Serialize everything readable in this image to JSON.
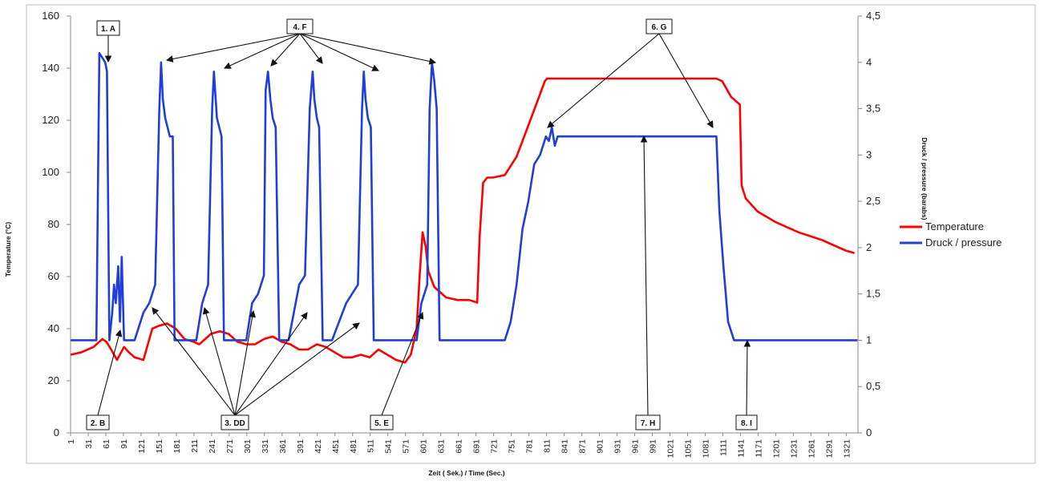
{
  "chart_data": {
    "type": "line",
    "title": "",
    "xlabel": "Zeit ( Sek.) / Time (Sec.)",
    "ylabel_left": "Temperature (°C)",
    "ylabel_right": "Druck / pressure (barabs)",
    "xlim": [
      1,
      1341
    ],
    "ylim_left": [
      0,
      160
    ],
    "ylim_right": [
      0,
      4.5
    ],
    "x_ticks": [
      1,
      31,
      61,
      91,
      121,
      151,
      181,
      211,
      241,
      271,
      301,
      331,
      361,
      391,
      421,
      451,
      481,
      511,
      541,
      571,
      601,
      631,
      661,
      691,
      721,
      751,
      781,
      811,
      841,
      871,
      901,
      931,
      961,
      991,
      1021,
      1051,
      1081,
      1111,
      1141,
      1171,
      1201,
      1231,
      1261,
      1291,
      1321
    ],
    "y_ticks_left": [
      "0",
      "20",
      "40",
      "60",
      "80",
      "100",
      "120",
      "140",
      "160"
    ],
    "y_ticks_right": [
      "0",
      "0,5",
      "1",
      "1,5",
      "2",
      "2,5",
      "3",
      "3,5",
      "4",
      "4,5"
    ],
    "grid": false,
    "legend_position": "right",
    "series": [
      {
        "name": "Temperature",
        "axis": "left",
        "color": "#ff0000",
        "x": [
          1,
          20,
          40,
          55,
          62,
          70,
          80,
          92,
          100,
          110,
          125,
          140,
          150,
          165,
          180,
          195,
          210,
          220,
          240,
          255,
          270,
          285,
          300,
          315,
          330,
          345,
          360,
          375,
          390,
          405,
          420,
          435,
          450,
          465,
          480,
          495,
          510,
          525,
          540,
          555,
          570,
          580,
          590,
          595,
          600,
          605,
          610,
          620,
          630,
          640,
          660,
          680,
          693,
          697,
          703,
          710,
          720,
          740,
          760,
          780,
          800,
          808,
          812,
          830,
          900,
          1000,
          1080,
          1100,
          1110,
          1115,
          1125,
          1140,
          1143,
          1150,
          1170,
          1200,
          1240,
          1280,
          1320,
          1335
        ],
        "y": [
          30,
          31,
          33,
          36,
          35,
          32,
          28,
          33,
          31,
          29,
          28,
          40,
          41,
          42,
          40,
          36,
          35,
          34,
          38,
          39,
          38,
          35,
          34,
          34,
          36,
          37,
          35,
          34,
          32,
          32,
          34,
          33,
          31,
          29,
          29,
          30,
          29,
          32,
          30,
          28,
          27,
          30,
          40,
          60,
          77,
          72,
          62,
          56,
          54,
          52,
          51,
          51,
          50,
          75,
          96,
          98,
          98,
          99,
          106,
          118,
          130,
          135,
          136,
          136,
          136,
          136,
          136,
          136,
          135,
          133,
          129,
          126,
          95,
          90,
          85,
          81,
          77,
          74,
          70,
          69
        ]
      },
      {
        "name": "Druck / pressure",
        "axis": "right",
        "color": "#1f3fd8",
        "x": [
          1,
          30,
          45,
          50,
          55,
          60,
          63,
          67,
          72,
          75,
          78,
          82,
          85,
          88,
          92,
          95,
          110,
          125,
          135,
          145,
          152,
          155,
          158,
          162,
          166,
          170,
          175,
          178,
          182,
          186,
          190,
          215,
          225,
          235,
          242,
          245,
          248,
          250,
          254,
          258,
          262,
          268,
          272,
          276,
          280,
          300,
          310,
          320,
          330,
          333,
          337,
          341,
          345,
          350,
          356,
          360,
          364,
          368,
          372,
          390,
          400,
          408,
          413,
          416,
          420,
          424,
          430,
          434,
          438,
          442,
          446,
          470,
          480,
          490,
          497,
          500,
          503,
          507,
          512,
          517,
          522,
          527,
          531,
          535,
          540,
          570,
          590,
          598,
          603,
          608,
          612,
          616,
          620,
          624,
          629,
          634,
          638,
          642,
          646,
          650,
          660,
          700,
          740,
          750,
          760,
          770,
          780,
          790,
          800,
          810,
          815,
          820,
          825,
          830,
          900,
          1000,
          1080,
          1100,
          1105,
          1112,
          1120,
          1130,
          1140,
          1143,
          1150,
          1160,
          1200,
          1250,
          1300,
          1340
        ],
        "y": [
          1,
          1,
          1,
          4.1,
          4.05,
          4.0,
          3.9,
          1.0,
          1.3,
          1.6,
          1.4,
          1.8,
          1.2,
          1.9,
          1.0,
          1.0,
          1.0,
          1.3,
          1.4,
          1.6,
          3.5,
          4.0,
          3.6,
          3.4,
          3.3,
          3.2,
          3.2,
          1.0,
          1.0,
          1.0,
          1.0,
          1.0,
          1.4,
          1.6,
          3.5,
          3.9,
          3.6,
          3.4,
          3.3,
          3.2,
          1.0,
          1.0,
          1.0,
          1.0,
          1.0,
          1.0,
          1.4,
          1.5,
          1.7,
          3.7,
          3.9,
          3.6,
          3.4,
          3.3,
          1.0,
          1.0,
          1.0,
          1.0,
          1.0,
          1.6,
          1.7,
          3.5,
          3.9,
          3.6,
          3.4,
          3.3,
          1.0,
          1.0,
          1.0,
          1.0,
          1.0,
          1.4,
          1.5,
          1.6,
          3.5,
          3.9,
          3.6,
          3.4,
          3.3,
          1.0,
          1.0,
          1.0,
          1.0,
          1.0,
          1.0,
          1.0,
          1.0,
          1.4,
          1.5,
          1.6,
          3.5,
          4.0,
          3.8,
          3.5,
          1.0,
          1.0,
          1.0,
          1.0,
          1.0,
          1.0,
          1.0,
          1.0,
          1.0,
          1.2,
          1.6,
          2.2,
          2.5,
          2.9,
          3.0,
          3.2,
          3.15,
          3.3,
          3.1,
          3.2,
          3.2,
          3.2,
          3.2,
          3.2,
          2.4,
          1.8,
          1.2,
          1.0,
          1.0,
          1.0,
          1.0,
          1.0,
          1.0,
          1.0,
          1.0,
          1.0
        ]
      }
    ],
    "annotations": [
      {
        "label": "1. A",
        "x": 62,
        "y_right": 4.1
      },
      {
        "label": "2. B",
        "x": 82,
        "y_right": 1.05
      },
      {
        "label": "3. DD",
        "x": 240,
        "y_right": 0
      },
      {
        "label": "4. F",
        "x": 370,
        "y_right": 4.4
      },
      {
        "label": "5. E",
        "x": 540,
        "y_right": 0
      },
      {
        "label": "6. G",
        "x": 1000,
        "y_right": 4.4
      },
      {
        "label": "7. H",
        "x": 990,
        "y_right": 0
      },
      {
        "label": "8. I",
        "x": 1141,
        "y_right": 0
      }
    ]
  }
}
